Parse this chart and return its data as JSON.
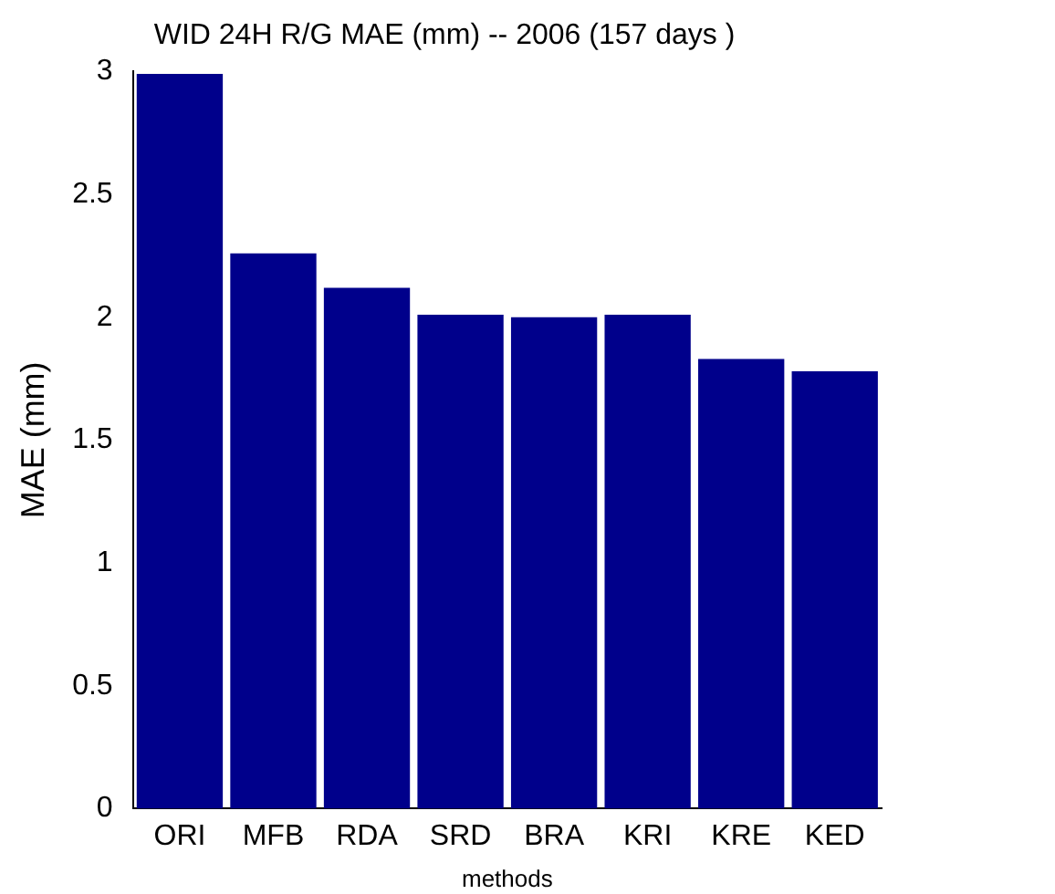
{
  "chart_data": {
    "type": "bar",
    "title": "WID 24H R/G MAE (mm) -- 2006 (157 days )",
    "xlabel": "methods",
    "ylabel": "MAE (mm)",
    "categories": [
      "ORI",
      "MFB",
      "RDA",
      "SRD",
      "BRA",
      "KRI",
      "KRE",
      "KED"
    ],
    "values": [
      2.99,
      2.26,
      2.12,
      2.01,
      2.0,
      2.01,
      1.83,
      1.78
    ],
    "color": "#00008b",
    "ylim": [
      0,
      3
    ],
    "yticks": [
      0,
      0.5,
      1,
      1.5,
      2,
      2.5,
      3
    ],
    "grid": false,
    "legend": false
  }
}
